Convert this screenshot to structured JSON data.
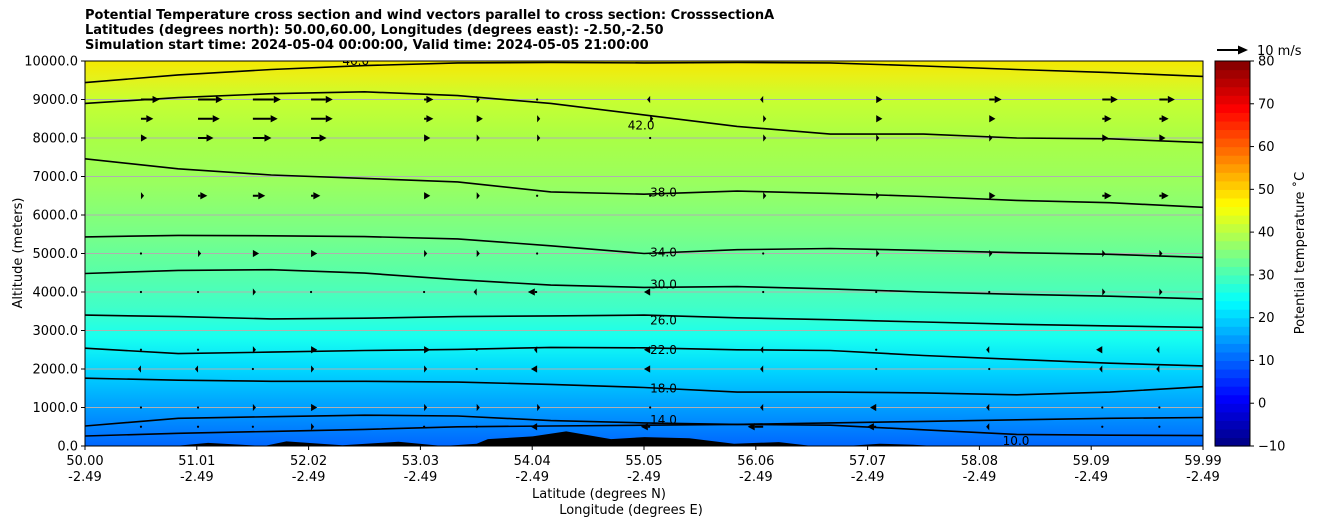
{
  "chart_data": {
    "type": "heatmap",
    "title_lines": [
      "Potential Temperature cross section and wind vectors parallel to cross section: CrosssectionA",
      "Latitudes (degrees north): 50.00,60.00, Longitudes (degrees east): -2.50,-2.50",
      "Simulation start time: 2024-05-04 00:00:00, Valid time: 2024-05-05 21:00:00"
    ],
    "xlabel": "Latitude (degrees N)",
    "xlabel2": "Longitude (degrees E)",
    "ylabel": "Altitude (meters)",
    "xlim": [
      50.0,
      59.99
    ],
    "ylim": [
      0,
      10000
    ],
    "x_ticks": [
      {
        "lat": "50.00",
        "lon": "-2.49"
      },
      {
        "lat": "51.01",
        "lon": "-2.49"
      },
      {
        "lat": "52.02",
        "lon": "-2.49"
      },
      {
        "lat": "53.03",
        "lon": "-2.49"
      },
      {
        "lat": "54.04",
        "lon": "-2.49"
      },
      {
        "lat": "55.05",
        "lon": "-2.49"
      },
      {
        "lat": "56.06",
        "lon": "-2.49"
      },
      {
        "lat": "57.07",
        "lon": "-2.49"
      },
      {
        "lat": "58.08",
        "lon": "-2.49"
      },
      {
        "lat": "59.09",
        "lon": "-2.49"
      },
      {
        "lat": "59.99",
        "lon": "-2.49"
      }
    ],
    "y_ticks": [
      "0.0",
      "1000.0",
      "2000.0",
      "3000.0",
      "4000.0",
      "5000.0",
      "6000.0",
      "7000.0",
      "8000.0",
      "9000.0",
      "10000.0"
    ],
    "grid": "horizontal",
    "colorbar": {
      "label": "Potential temperature ˚C",
      "range": [
        -10,
        80
      ],
      "ticks": [
        "80",
        "70",
        "60",
        "50",
        "40",
        "30",
        "20",
        "10",
        "0",
        "−10"
      ],
      "colormap": "jet"
    },
    "quiver_key": {
      "label": "10 m/s"
    },
    "contours": [
      {
        "level": 10.0,
        "label": "10.0",
        "alts": [
          260,
          330,
          380,
          430,
          500,
          520,
          540,
          560,
          540,
          420,
          300,
          280,
          270
        ],
        "label_pos": [
          58.2,
          130
        ]
      },
      {
        "level": 14.0,
        "label": "14.0",
        "alts": [
          520,
          720,
          760,
          800,
          780,
          660,
          600,
          560,
          600,
          640,
          680,
          720,
          740
        ],
        "label_pos": [
          55.05,
          680
        ]
      },
      {
        "level": 18.0,
        "label": "18.0",
        "alts": [
          1760,
          1710,
          1680,
          1680,
          1660,
          1600,
          1520,
          1400,
          1400,
          1380,
          1330,
          1400,
          1540
        ],
        "label_pos": [
          55.05,
          1500
        ]
      },
      {
        "level": 22.0,
        "label": "22.0",
        "alts": [
          2540,
          2400,
          2440,
          2480,
          2510,
          2560,
          2550,
          2500,
          2480,
          2350,
          2250,
          2150,
          2080
        ],
        "label_pos": [
          55.05,
          2500
        ]
      },
      {
        "level": 26.0,
        "label": "26.0",
        "alts": [
          3400,
          3360,
          3300,
          3320,
          3360,
          3380,
          3400,
          3330,
          3280,
          3220,
          3160,
          3120,
          3080
        ],
        "label_pos": [
          55.05,
          3260
        ]
      },
      {
        "level": 30.0,
        "label": "30.0",
        "alts": [
          4480,
          4560,
          4580,
          4490,
          4320,
          4180,
          4120,
          4140,
          4080,
          4000,
          3940,
          3890,
          3820
        ],
        "label_pos": [
          55.05,
          4200
        ]
      },
      {
        "level": 34.0,
        "label": "34.0",
        "alts": [
          5430,
          5470,
          5460,
          5440,
          5380,
          5200,
          5000,
          5100,
          5130,
          5080,
          5020,
          4980,
          4900
        ],
        "label_pos": [
          55.05,
          5020
        ]
      },
      {
        "level": 38.0,
        "label": "38.0",
        "alts": [
          7460,
          7200,
          7040,
          6950,
          6860,
          6600,
          6540,
          6620,
          6560,
          6480,
          6380,
          6320,
          6200
        ],
        "label_pos": [
          55.05,
          6580
        ]
      },
      {
        "level": 42.0,
        "label": "42.0",
        "alts": [
          8900,
          9050,
          9150,
          9200,
          9100,
          8900,
          8600,
          8300,
          8100,
          8100,
          8000,
          7980,
          7880
        ],
        "label_pos": [
          54.85,
          8330
        ]
      },
      {
        "level": 46.0,
        "label": "46.0",
        "alts": [
          9440,
          9640,
          9780,
          9880,
          9950,
          9960,
          9950,
          9960,
          9950,
          9870,
          9780,
          9700,
          9600
        ],
        "label_pos": [
          52.3,
          10000
        ]
      }
    ],
    "terrain": {
      "x": [
        50.0,
        50.8,
        51.1,
        51.6,
        51.8,
        52.3,
        52.8,
        53.2,
        53.5,
        53.6,
        54.0,
        54.3,
        54.7,
        55.0,
        55.4,
        55.8,
        56.2,
        56.5,
        56.8,
        57.1,
        57.4,
        57.6,
        58.0,
        59.99
      ],
      "alt": [
        0,
        0,
        80,
        0,
        120,
        20,
        110,
        0,
        60,
        180,
        250,
        380,
        180,
        230,
        200,
        60,
        100,
        0,
        0,
        60,
        30,
        0,
        0,
        0
      ]
    },
    "wind_vectors_mps": {
      "alts": [
        9000,
        8500,
        8000,
        6500,
        5000,
        4000,
        2500,
        2000,
        1000,
        500
      ],
      "lats": [
        50.5,
        51.01,
        51.5,
        52.02,
        53.03,
        53.5,
        54.04,
        55.05,
        56.06,
        57.07,
        58.08,
        59.09,
        59.6
      ],
      "u": [
        [
          6,
          8,
          9,
          7,
          3,
          1,
          0,
          -1,
          -1,
          2,
          4,
          5,
          5
        ],
        [
          4,
          7,
          8,
          7,
          3,
          2,
          1,
          1,
          1,
          2,
          2,
          3,
          3
        ],
        [
          2,
          5,
          6,
          5,
          2,
          1,
          1,
          0,
          1,
          1,
          1,
          2,
          2
        ],
        [
          1,
          3,
          4,
          3,
          2,
          1,
          0,
          0,
          1,
          1,
          2,
          3,
          3
        ],
        [
          0,
          1,
          2,
          2,
          1,
          1,
          0,
          0,
          0,
          1,
          1,
          1,
          1
        ],
        [
          0,
          0,
          1,
          0,
          0,
          -1,
          -3,
          -2,
          0,
          0,
          0,
          1,
          1
        ],
        [
          0,
          0,
          1,
          2,
          2,
          0,
          -1,
          -2,
          -1,
          0,
          -1,
          -2,
          -1
        ],
        [
          -1,
          -1,
          0,
          1,
          1,
          0,
          -2,
          -2,
          -1,
          0,
          0,
          -1,
          -1
        ],
        [
          0,
          0,
          1,
          2,
          1,
          1,
          1,
          0,
          -1,
          -2,
          -1,
          0,
          0
        ],
        [
          0,
          0,
          0,
          1,
          0,
          0,
          -2,
          -3,
          -5,
          -3,
          -1,
          0,
          0
        ]
      ]
    }
  }
}
